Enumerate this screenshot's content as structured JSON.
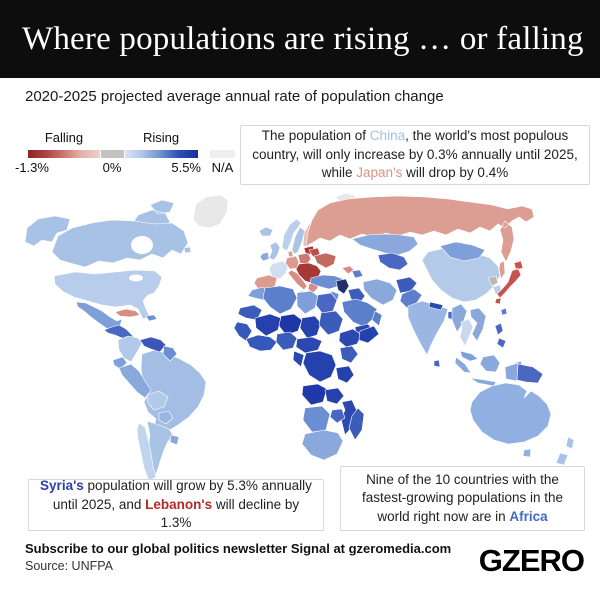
{
  "header": {
    "title": "Where populations are rising … or falling",
    "bg": "#0d0d0d",
    "text_color": "#ffffff"
  },
  "subtitle": "2020-2025 projected average annual rate of population change",
  "legend": {
    "falling_label": "Falling",
    "rising_label": "Rising",
    "min_label": "-1.3%",
    "zero_label": "0%",
    "max_label": "5.5%",
    "na_label": "N/A",
    "falling_gradient": [
      "#8e2423",
      "#b04341",
      "#cc7a70",
      "#e5b3aa",
      "#eed0c9"
    ],
    "neutral_color": "#c2c2c2",
    "rising_gradient": [
      "#d9e5f4",
      "#a9c3e6",
      "#6b8fcb",
      "#2f4cb4",
      "#17309c"
    ],
    "na_color": "#efefef"
  },
  "annotations": {
    "china": {
      "segments": [
        {
          "text": "The population of "
        },
        {
          "text": "China",
          "color": "#9fc3ea"
        },
        {
          "text": ", the world's most populous country, will only increase by 0.3% annually until 2025, while "
        },
        {
          "text": "Japan's",
          "color": "#df9186"
        },
        {
          "text": " will drop by 0.4%"
        }
      ]
    },
    "syria": {
      "segments": [
        {
          "text": "Syria's",
          "color": "#2c3fa4",
          "bold": true
        },
        {
          "text": " population will grow by 5.3% annually until 2025, and "
        },
        {
          "text": "Lebanon's",
          "color": "#b32a27",
          "bold": true
        },
        {
          "text": " will decline by 1.3%"
        }
      ]
    },
    "africa": {
      "segments": [
        {
          "text": "Nine of the 10 countries with the fastest-growing populations in the world right now are in "
        },
        {
          "text": "Africa",
          "color": "#3e6bcc",
          "bold": true
        }
      ]
    }
  },
  "footer": {
    "newsletter": "Subscribe to our global politics newsletter Signal at gzeromedia.com",
    "source": "Source: UNFPA",
    "logo": "GZERO"
  },
  "map": {
    "ocean": "#ffffff",
    "border": "#ffffff",
    "region_colors": {
      "greenland": "#e8e8e8",
      "svalbard": "#e8e8e8",
      "alaska": "#a7c2e5",
      "canada": "#a7c2e5",
      "usa": "#b7cdeb",
      "mexico": "#7e9fd9",
      "central_america": "#4a67c2",
      "cuba": "#d88d84",
      "hispaniola": "#6b8fd2",
      "colombia": "#b3c9e9",
      "venezuela": "#3c55b8",
      "guyanas": "#6b8fd2",
      "ecuador": "#7e9fd9",
      "peru": "#8aa8dc",
      "brazil": "#a3bde4",
      "bolivia": "#b3c9e9",
      "paraguay": "#9ab6e2",
      "chile": "#c1d4ee",
      "argentina": "#a9c3e6",
      "uruguay": "#8aa8dc",
      "iceland": "#a9c3e6",
      "uk": "#a9c3e6",
      "ireland": "#8aa8dc",
      "norway": "#b9cfec",
      "sweden": "#a9c3e6",
      "finland": "#e7c0b8",
      "baltics": "#a63838",
      "denmark": "#dd9a8f",
      "germany": "#dd9a8f",
      "poland": "#cc7a70",
      "belarus": "#b85048",
      "ukraine": "#c4695e",
      "france": "#cfdef1",
      "iberia": "#dd9a8f",
      "italy": "#d88d84",
      "central_europe": "#a63838",
      "greece": "#d88d84",
      "russia": "#dc9e92",
      "kazakhstan": "#8aa8dc",
      "central_asia": "#4a67c2",
      "georgia": "#d88d84",
      "azerbaijan": "#5b7fcb",
      "turkey": "#6b8fd2",
      "syria": "#232f6b",
      "jordan_israel": "#6b8fd2",
      "iraq": "#3c5cba",
      "saudi": "#5b7fcb",
      "yemen": "#2d47b0",
      "oman": "#5b7fcb",
      "iran": "#8aa8dc",
      "afghanistan": "#3c5cba",
      "pakistan": "#5b7fcb",
      "india": "#9ab6e2",
      "sri_lanka": "#4a67c2",
      "nepal": "#2d47b0",
      "bangladesh": "#4a67c2",
      "china": "#b3cbe9",
      "mongolia": "#7e9fd9",
      "myanmar": "#8aa8dc",
      "thailand": "#c7d8ef",
      "indochina": "#8aa8dc",
      "malaysia": "#7e9fd9",
      "sumatra": "#8aa8dc",
      "borneo": "#8aa8dc",
      "java": "#8aa8dc",
      "sulawesi": "#8aa8dc",
      "philippines": "#4a67c2",
      "taiwan": "#5b7fcb",
      "nkorea": "#b8b8b8",
      "skorea": "#b9cfec",
      "japan": "#c5534e",
      "morocco": "#7e9fd9",
      "algeria": "#5b7fcb",
      "libya": "#7e9fd9",
      "egypt": "#4a67c2",
      "mauritania": "#3c5cba",
      "mali": "#2441ae",
      "niger": "#1e36a6",
      "chad": "#2441ae",
      "sudan": "#3c5cba",
      "senegal_guinea": "#3558bb",
      "west_africa": "#3558bb",
      "nigeria": "#3c5cba",
      "cameroon_car": "#2d47b0",
      "ethiopia": "#2d47b0",
      "somalia": "#2441ae",
      "kenya": "#3c5cba",
      "gabon_congo": "#2d47b0",
      "drc": "#2441ae",
      "tanzania": "#2441ae",
      "angola": "#2038aa",
      "zambia": "#2441ae",
      "mozambique": "#2d47b0",
      "zimbabwe": "#4a67c2",
      "namibia_botswana": "#6b8fd2",
      "south_africa": "#8aa8dc",
      "madagascar": "#3c5cba",
      "new_guinea_west": "#8aa8dc",
      "png": "#4a67c2",
      "australia": "#8fb0e0",
      "tasmania": "#8fb0e0",
      "nz": "#a9c3e6"
    }
  }
}
